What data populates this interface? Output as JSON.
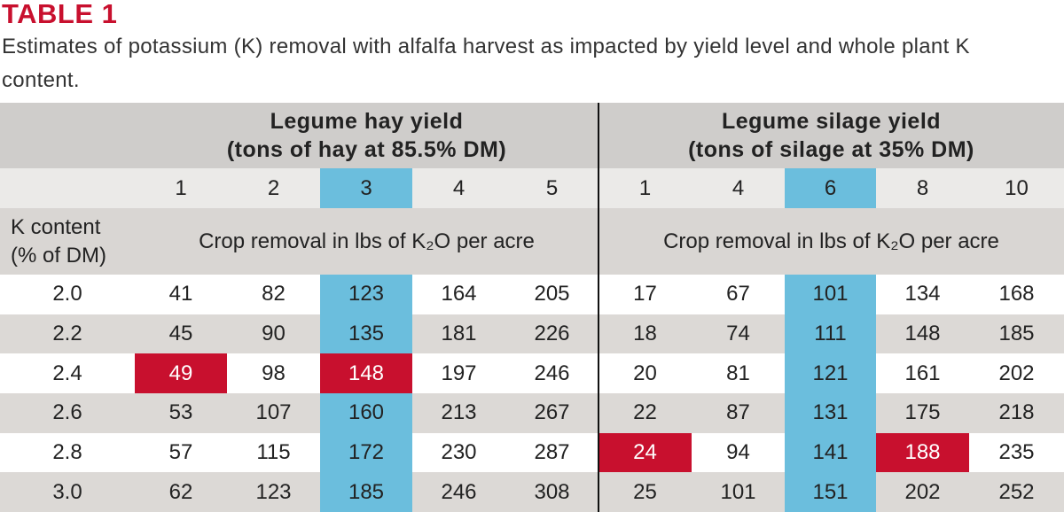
{
  "header": {
    "title": "TABLE 1",
    "caption": "Estimates of potassium (K) removal with alfalfa harvest as impacted by yield level and whole plant K content."
  },
  "table": {
    "groups": [
      {
        "title": [
          "Legume hay yield",
          "(tons of hay at 85.5% DM)"
        ],
        "yields": [
          1,
          2,
          3,
          4,
          5
        ],
        "unit_label": "Crop removal in lbs of K₂O per acre"
      },
      {
        "title": [
          "Legume silage yield",
          "(tons of silage at 35% DM)"
        ],
        "yields": [
          1,
          4,
          6,
          8,
          10
        ],
        "unit_label": "Crop removal in lbs of K₂O per acre"
      }
    ],
    "row_header": [
      "K content",
      "(% of DM)"
    ],
    "rows": [
      {
        "k": "2.0",
        "values": [
          41,
          82,
          123,
          164,
          205,
          17,
          67,
          101,
          134,
          168
        ]
      },
      {
        "k": "2.2",
        "values": [
          45,
          90,
          135,
          181,
          226,
          18,
          74,
          111,
          148,
          185
        ]
      },
      {
        "k": "2.4",
        "values": [
          49,
          98,
          148,
          197,
          246,
          20,
          81,
          121,
          161,
          202
        ]
      },
      {
        "k": "2.6",
        "values": [
          53,
          107,
          160,
          213,
          267,
          22,
          87,
          131,
          175,
          218
        ]
      },
      {
        "k": "2.8",
        "values": [
          57,
          115,
          172,
          230,
          287,
          24,
          94,
          141,
          188,
          235
        ]
      },
      {
        "k": "3.0",
        "values": [
          62,
          123,
          185,
          246,
          308,
          25,
          101,
          151,
          202,
          252
        ]
      }
    ]
  }
}
